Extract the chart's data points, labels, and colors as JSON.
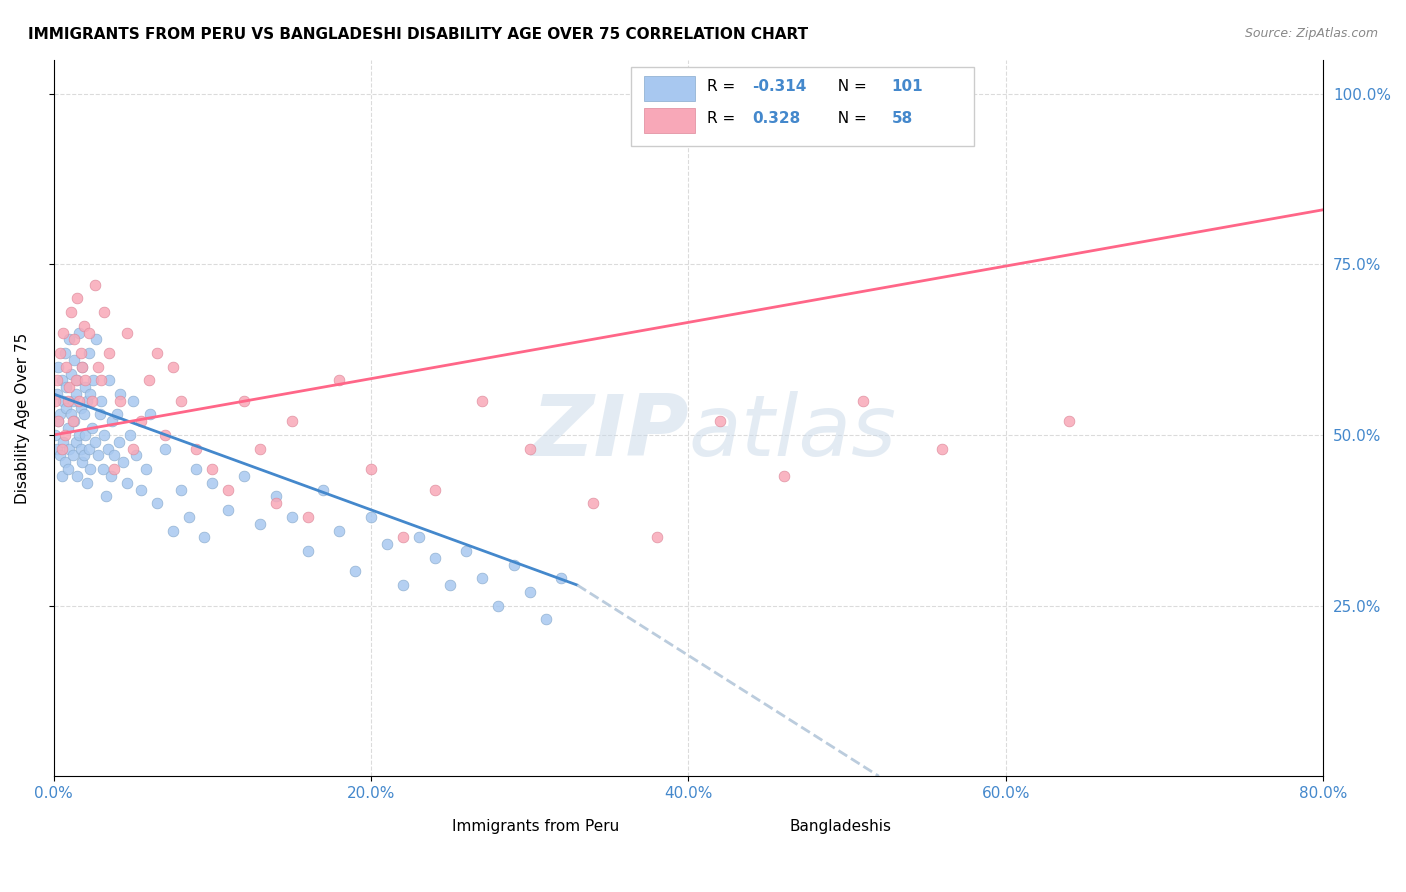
{
  "title": "IMMIGRANTS FROM PERU VS BANGLADESHI DISABILITY AGE OVER 75 CORRELATION CHART",
  "source": "Source: ZipAtlas.com",
  "xlabel": "",
  "ylabel": "Disability Age Over 75",
  "xmin": 0.0,
  "xmax": 0.8,
  "ymin": 0.0,
  "ymax": 1.05,
  "xtick_labels": [
    "0.0%",
    "20.0%",
    "40.0%",
    "60.0%",
    "80.0%"
  ],
  "xtick_vals": [
    0.0,
    0.2,
    0.4,
    0.6,
    0.8
  ],
  "ytick_labels": [
    "25.0%",
    "50.0%",
    "75.0%",
    "100.0%"
  ],
  "ytick_vals": [
    0.25,
    0.5,
    0.75,
    1.0
  ],
  "legend_entry1": "R =  -0.314   N = 101",
  "legend_entry2": "R =   0.328   N =  58",
  "legend_r1": "-0.314",
  "legend_n1": "101",
  "legend_r2": "0.328",
  "legend_n2": "58",
  "color_peru": "#a8c8f0",
  "color_bangladesh": "#f8a8b8",
  "color_peru_line": "#4488cc",
  "color_bangladesh_line": "#ff6688",
  "color_dashed": "#bbccdd",
  "watermark": "ZIPatlas",
  "watermark_color": "#c8d8e8",
  "peru_x": [
    0.001,
    0.002,
    0.002,
    0.003,
    0.003,
    0.004,
    0.004,
    0.005,
    0.005,
    0.006,
    0.006,
    0.007,
    0.007,
    0.008,
    0.008,
    0.009,
    0.009,
    0.01,
    0.01,
    0.011,
    0.011,
    0.012,
    0.012,
    0.013,
    0.013,
    0.014,
    0.014,
    0.015,
    0.015,
    0.016,
    0.016,
    0.017,
    0.017,
    0.018,
    0.018,
    0.019,
    0.019,
    0.02,
    0.02,
    0.021,
    0.021,
    0.022,
    0.022,
    0.023,
    0.023,
    0.024,
    0.025,
    0.026,
    0.027,
    0.028,
    0.029,
    0.03,
    0.031,
    0.032,
    0.033,
    0.034,
    0.035,
    0.036,
    0.037,
    0.038,
    0.04,
    0.041,
    0.042,
    0.044,
    0.046,
    0.048,
    0.05,
    0.052,
    0.055,
    0.058,
    0.061,
    0.065,
    0.07,
    0.075,
    0.08,
    0.085,
    0.09,
    0.095,
    0.1,
    0.11,
    0.12,
    0.13,
    0.14,
    0.15,
    0.16,
    0.17,
    0.18,
    0.19,
    0.2,
    0.21,
    0.22,
    0.23,
    0.24,
    0.25,
    0.26,
    0.27,
    0.28,
    0.29,
    0.3,
    0.31,
    0.32
  ],
  "peru_y": [
    0.5,
    0.56,
    0.48,
    0.52,
    0.6,
    0.53,
    0.47,
    0.58,
    0.44,
    0.55,
    0.49,
    0.62,
    0.46,
    0.54,
    0.57,
    0.51,
    0.45,
    0.64,
    0.48,
    0.53,
    0.59,
    0.47,
    0.55,
    0.52,
    0.61,
    0.49,
    0.56,
    0.44,
    0.58,
    0.5,
    0.65,
    0.48,
    0.54,
    0.46,
    0.6,
    0.53,
    0.47,
    0.57,
    0.5,
    0.55,
    0.43,
    0.62,
    0.48,
    0.56,
    0.45,
    0.51,
    0.58,
    0.49,
    0.64,
    0.47,
    0.53,
    0.55,
    0.45,
    0.5,
    0.41,
    0.48,
    0.58,
    0.44,
    0.52,
    0.47,
    0.53,
    0.49,
    0.56,
    0.46,
    0.43,
    0.5,
    0.55,
    0.47,
    0.42,
    0.45,
    0.53,
    0.4,
    0.48,
    0.36,
    0.42,
    0.38,
    0.45,
    0.35,
    0.43,
    0.39,
    0.44,
    0.37,
    0.41,
    0.38,
    0.33,
    0.42,
    0.36,
    0.3,
    0.38,
    0.34,
    0.28,
    0.35,
    0.32,
    0.28,
    0.33,
    0.29,
    0.25,
    0.31,
    0.27,
    0.23,
    0.29
  ],
  "bang_x": [
    0.001,
    0.002,
    0.003,
    0.004,
    0.005,
    0.006,
    0.007,
    0.008,
    0.009,
    0.01,
    0.011,
    0.012,
    0.013,
    0.014,
    0.015,
    0.016,
    0.017,
    0.018,
    0.019,
    0.02,
    0.022,
    0.024,
    0.026,
    0.028,
    0.03,
    0.032,
    0.035,
    0.038,
    0.042,
    0.046,
    0.05,
    0.055,
    0.06,
    0.065,
    0.07,
    0.075,
    0.08,
    0.09,
    0.1,
    0.11,
    0.12,
    0.13,
    0.14,
    0.15,
    0.16,
    0.18,
    0.2,
    0.22,
    0.24,
    0.27,
    0.3,
    0.34,
    0.38,
    0.42,
    0.46,
    0.51,
    0.56,
    0.64
  ],
  "bang_y": [
    0.55,
    0.58,
    0.52,
    0.62,
    0.48,
    0.65,
    0.5,
    0.6,
    0.55,
    0.57,
    0.68,
    0.52,
    0.64,
    0.58,
    0.7,
    0.55,
    0.62,
    0.6,
    0.66,
    0.58,
    0.65,
    0.55,
    0.72,
    0.6,
    0.58,
    0.68,
    0.62,
    0.45,
    0.55,
    0.65,
    0.48,
    0.52,
    0.58,
    0.62,
    0.5,
    0.6,
    0.55,
    0.48,
    0.45,
    0.42,
    0.55,
    0.48,
    0.4,
    0.52,
    0.38,
    0.58,
    0.45,
    0.35,
    0.42,
    0.55,
    0.48,
    0.4,
    0.35,
    0.52,
    0.44,
    0.55,
    0.48,
    0.52
  ]
}
